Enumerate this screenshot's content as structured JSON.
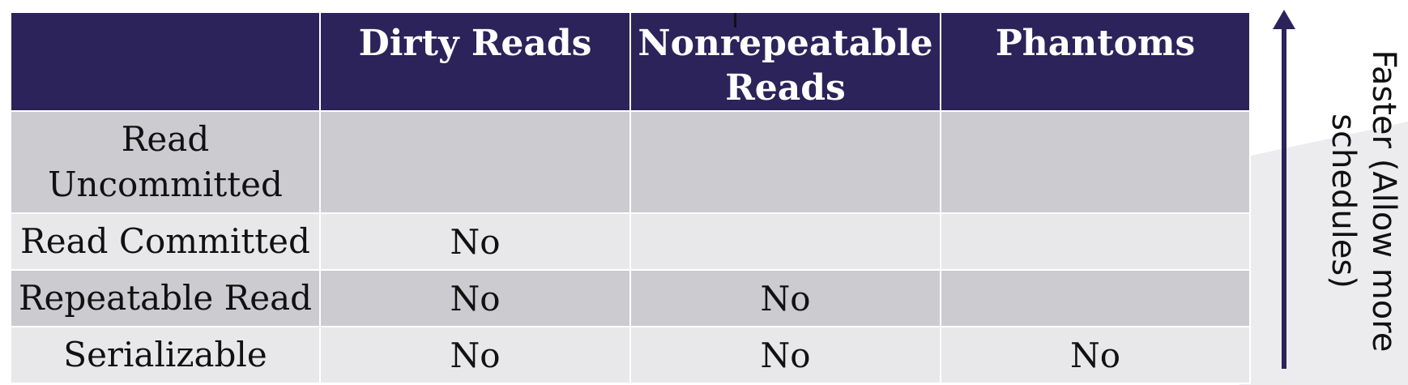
{
  "table": {
    "headers": [
      "",
      "Dirty Reads",
      "Nonrepeatable Reads",
      "Phantoms"
    ],
    "rows": [
      {
        "label": "Read Uncommitted",
        "cells": [
          "",
          "",
          ""
        ]
      },
      {
        "label": "Read Committed",
        "cells": [
          "No",
          "",
          ""
        ]
      },
      {
        "label": "Repeatable Read",
        "cells": [
          "No",
          "No",
          ""
        ]
      },
      {
        "label": "Serializable",
        "cells": [
          "No",
          "No",
          "No"
        ]
      }
    ]
  },
  "side_note": {
    "text": "Faster (Allow more schedules)"
  },
  "colors": {
    "header_bg": "#2b2359",
    "row_dark": "#cbcbd0",
    "row_light": "#e8e8ea",
    "arrow": "#2b2359"
  }
}
